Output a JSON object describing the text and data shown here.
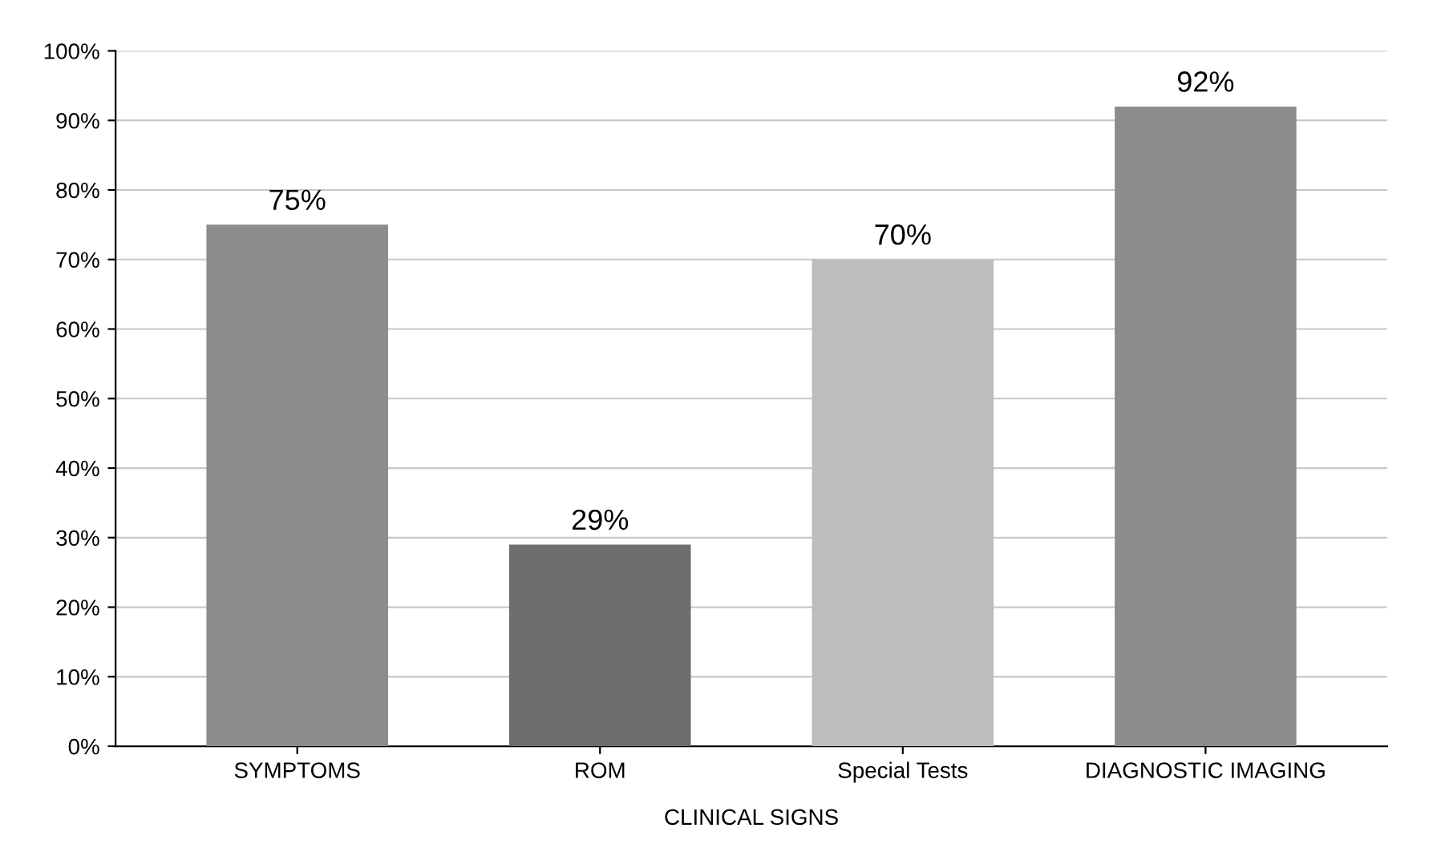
{
  "chart_data": {
    "type": "bar",
    "categories": [
      "SYMPTOMS",
      "ROM",
      "Special Tests",
      "DIAGNOSTIC IMAGING"
    ],
    "values": [
      75,
      29,
      70,
      92
    ],
    "colors": [
      "#8c8c8c",
      "#6e6e6e",
      "#bdbdbf",
      "#8c8c8c"
    ],
    "value_labels": [
      "75%",
      "29%",
      "70%",
      "92%"
    ],
    "annotations": [
      "CLINICAL SIGNS"
    ],
    "ylim": [
      0,
      100
    ],
    "yticks": [
      {
        "value": 0,
        "label": "0%"
      },
      {
        "value": 10,
        "label": "10%"
      },
      {
        "value": 20,
        "label": "20%"
      },
      {
        "value": 30,
        "label": "30%"
      },
      {
        "value": 40,
        "label": "40%"
      },
      {
        "value": 50,
        "label": "50%"
      },
      {
        "value": 60,
        "label": "60%"
      },
      {
        "value": 70,
        "label": "70%"
      },
      {
        "value": 80,
        "label": "80%"
      },
      {
        "value": 90,
        "label": "90%"
      },
      {
        "value": 100,
        "label": "100%"
      }
    ],
    "grid": "y",
    "legend": false
  }
}
